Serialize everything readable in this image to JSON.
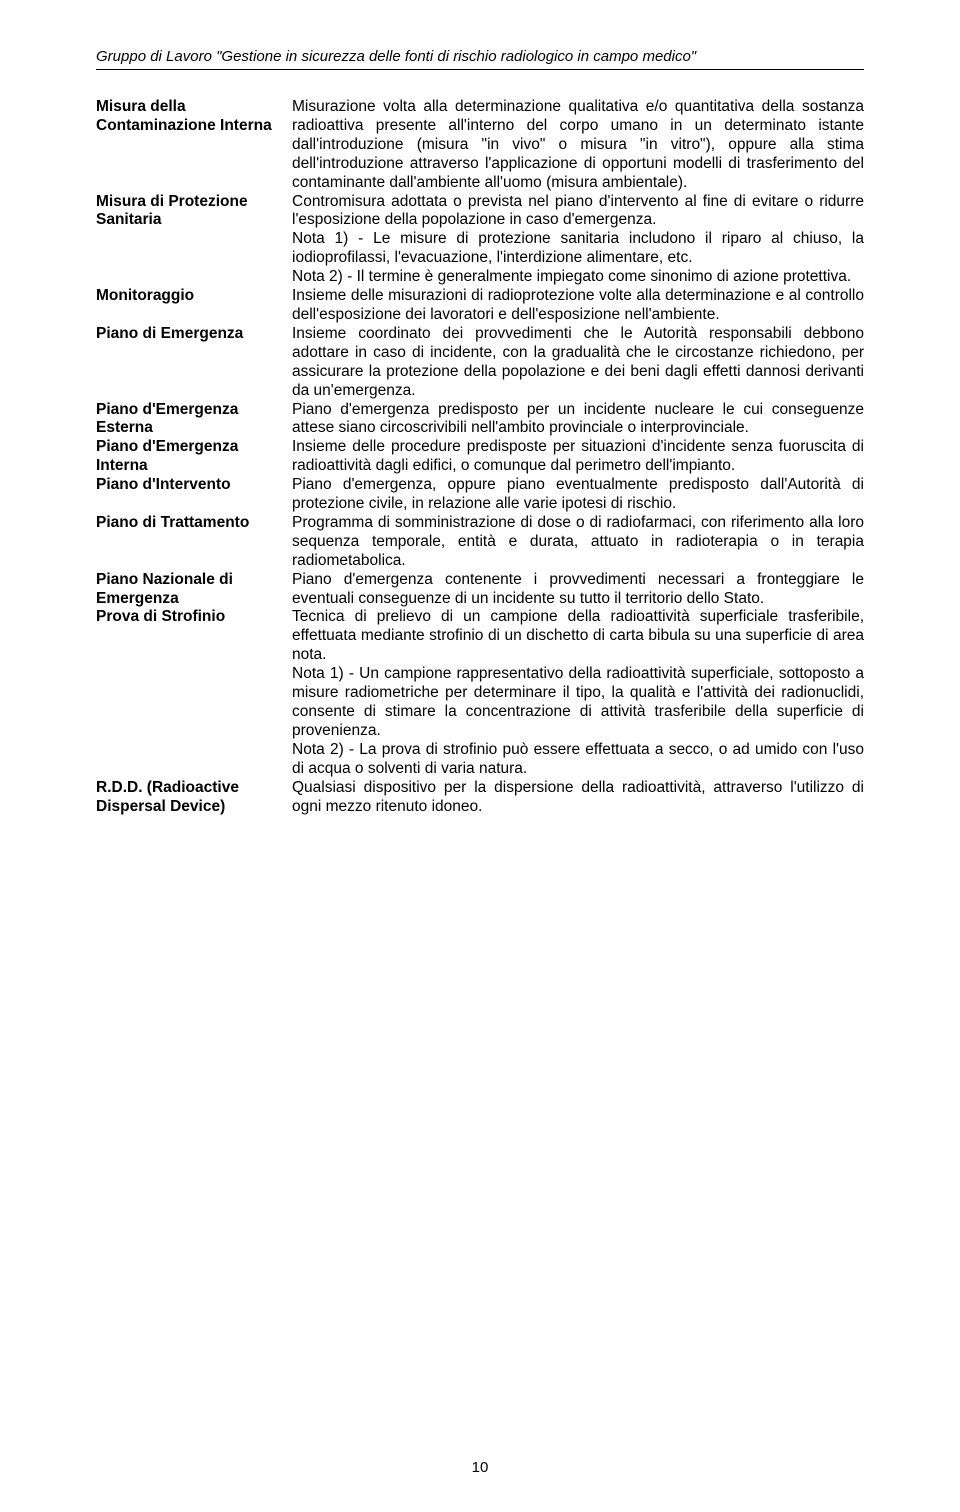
{
  "header": "Gruppo di Lavoro \"Gestione in sicurezza delle fonti di rischio radiologico in campo medico\"",
  "pageNumber": "10",
  "entries": [
    {
      "term": "Misura della Contaminazione Interna",
      "def": "Misurazione volta alla determinazione qualitativa e/o quantitativa della sostanza radioattiva presente all'interno del corpo umano in un determinato istante dall'introduzione (misura \"in vivo\" o misura \"in vitro\"), oppure alla stima dell'introduzione attraverso l'applicazione di opportuni modelli di trasferimento del contaminante dall'ambiente all'uomo (misura ambientale)."
    },
    {
      "term": "Misura di Protezione Sanitaria",
      "def": "Contromisura adottata o prevista nel piano d'intervento al fine di evitare o ridurre l'esposizione della popolazione in caso d'emergenza.\nNota 1) - Le misure di protezione sanitaria includono il riparo al chiuso, la iodioprofilassi, l'evacuazione, l'interdizione alimentare, etc.\nNota 2) - Il termine è generalmente impiegato come sinonimo di azione protettiva."
    },
    {
      "term": "Monitoraggio",
      "def": "Insieme delle misurazioni di radioprotezione volte alla determinazione e al controllo dell'esposizione dei lavoratori e dell'esposizione nell'ambiente."
    },
    {
      "term": "Piano di Emergenza",
      "def": "Insieme coordinato dei provvedimenti che le Autorità responsabili debbono adottare in caso di incidente, con la gradualità che le circostanze richiedono, per assicurare la protezione della popolazione e dei beni dagli effetti dannosi derivanti da un'emergenza."
    },
    {
      "term": "Piano d'Emergenza Esterna",
      "def": "Piano d'emergenza predisposto per un incidente nucleare le cui conseguenze attese siano circoscrivibili nell'ambito provinciale o interprovinciale."
    },
    {
      "term": "Piano d'Emergenza Interna",
      "def": "Insieme delle procedure predisposte per situazioni d'incidente senza fuoruscita di radioattività dagli edifici, o comunque dal perimetro dell'impianto."
    },
    {
      "term": "Piano d'Intervento",
      "def": "Piano d'emergenza, oppure piano eventualmente predisposto dall'Autorità di protezione civile, in relazione alle varie ipotesi di rischio."
    },
    {
      "term": "Piano di Trattamento",
      "def": "Programma di somministrazione di dose o di radiofarmaci, con riferimento alla loro sequenza temporale, entità e durata, attuato in radioterapia o in terapia radiometabolica."
    },
    {
      "term": "Piano Nazionale di Emergenza",
      "def": "Piano d'emergenza contenente i provvedimenti necessari a fronteggiare le eventuali conseguenze di un incidente su tutto il territorio dello Stato."
    },
    {
      "term": "Prova di Strofinio",
      "def": "Tecnica di prelievo di un campione della radioattività superficiale trasferibile, effettuata mediante strofinio di un dischetto di carta bibula su una superficie di area nota.\nNota 1) - Un campione rappresentativo della radioattività superficiale, sottoposto a misure radiometriche per determinare il tipo, la qualità e l'attività dei radionuclidi, consente di stimare la concentrazione di attività trasferibile della superficie di provenienza.\nNota 2) - La prova di strofinio può essere effettuata a secco, o ad umido con l'uso di acqua o solventi di varia natura."
    },
    {
      "term": "R.D.D. (Radioactive Dispersal Device)",
      "def": "Qualsiasi dispositivo per la dispersione della radioattività, attraverso l'utilizzo di ogni mezzo ritenuto idoneo."
    }
  ]
}
